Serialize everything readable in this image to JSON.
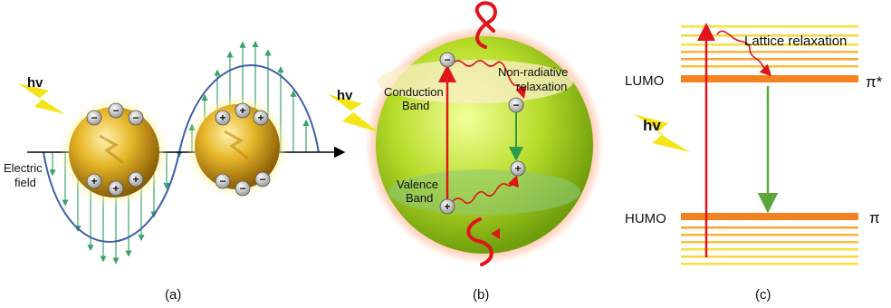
{
  "panel_a": {
    "hv_label": "hv",
    "electric_field_line1": "Electric",
    "electric_field_line2": "field",
    "caption": "(a)",
    "minus_sign": "−",
    "plus_sign": "+"
  },
  "panel_b": {
    "hv_label": "hv",
    "conduction_line1": "Conduction",
    "conduction_line2": "Band",
    "valence_line1": "Valence",
    "valence_line2": "Band",
    "nonrad_line1": "Non-radiative",
    "nonrad_line2": "relaxation",
    "caption": "(b)",
    "minus_sign": "−",
    "plus_sign": "+"
  },
  "panel_c": {
    "lattice_label": "Lattice relaxation",
    "lumo_label": "LUMO",
    "homo_label": "HUMO",
    "pi_star_label": "π*",
    "pi_label": "π",
    "hv_label": "hv",
    "caption": "(c)"
  },
  "colors": {
    "gold": "#d9a81a",
    "field_green": "#3aa36a",
    "wave_blue": "#3f5fa8",
    "lightning": "#f3e51a",
    "excite_red": "#e0141b",
    "emit_green": "#5aa83a",
    "level_orange": "#f58220",
    "level_yellow": "#f6e23a"
  }
}
